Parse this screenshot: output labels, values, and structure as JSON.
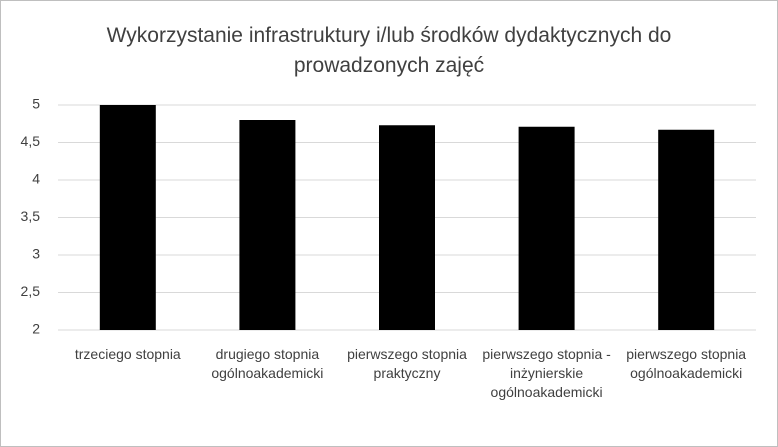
{
  "chart_data": {
    "type": "bar",
    "title": "Wykorzystanie infrastruktury i/lub środków dydaktycznych do prowadzonych zajęć",
    "categories": [
      "trzeciego stopnia",
      "drugiego stopnia ogólnoakademicki",
      "pierwszego stopnia praktyczny",
      "pierwszego stopnia - inżynierskie ogólnoakademicki",
      "pierwszego stopnia ogólnoakademicki"
    ],
    "values": [
      5.0,
      4.8,
      4.73,
      4.71,
      4.67
    ],
    "color": "#000000",
    "ylim": [
      2,
      5
    ],
    "yticks": [
      2,
      {
        "value": 2.5,
        "label": "2,5"
      },
      3,
      {
        "value": 3.5,
        "label": "3,5"
      },
      4,
      {
        "value": 4.5,
        "label": "4,5"
      },
      5
    ],
    "grid": true
  }
}
